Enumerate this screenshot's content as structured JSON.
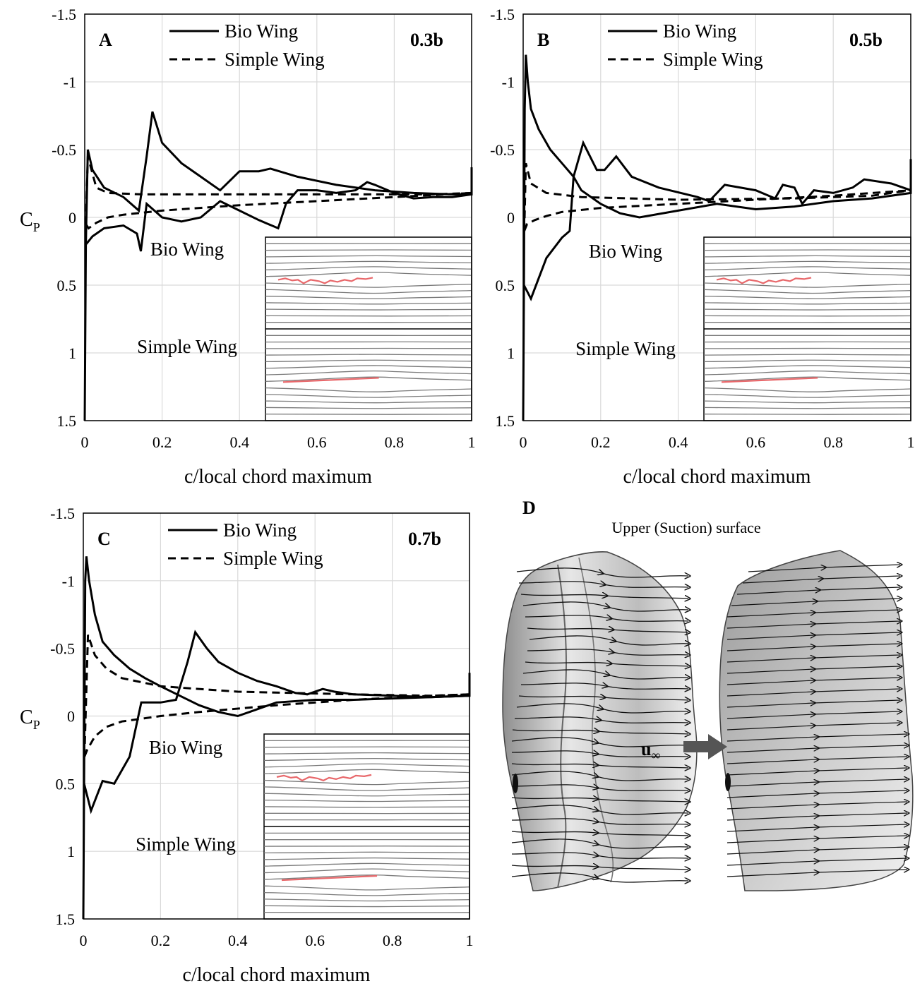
{
  "panels": [
    {
      "id": "A",
      "letter": "A",
      "position_label": "0.3b",
      "xlabel": "c/local chord maximum",
      "ylabel": "C",
      "ylabel_sub": "P",
      "legend": [
        "Bio Wing",
        "Simple Wing"
      ],
      "x_ticks": [
        "0",
        "0.2",
        "0.4",
        "0.6",
        "0.8",
        "1"
      ],
      "y_ticks": [
        "-1.5",
        "-1",
        "-0.5",
        "0",
        "0.5",
        "1",
        "1.5"
      ],
      "inset_labels": [
        "Bio Wing",
        "Simple Wing"
      ]
    },
    {
      "id": "B",
      "letter": "B",
      "position_label": "0.5b",
      "xlabel": "c/local chord maximum",
      "ylabel": "",
      "ylabel_sub": "",
      "legend": [
        "Bio Wing",
        "Simple Wing"
      ],
      "x_ticks": [
        "0",
        "0.2",
        "0.4",
        "0.6",
        "0.8",
        "1"
      ],
      "y_ticks": [
        "-1.5",
        "-1",
        "-0.5",
        "0",
        "0.5",
        "1",
        "1.5"
      ],
      "inset_labels": [
        "Bio Wing",
        "Simple Wing"
      ]
    },
    {
      "id": "C",
      "letter": "C",
      "position_label": "0.7b",
      "xlabel": "c/local chord maximum",
      "ylabel": "C",
      "ylabel_sub": "P",
      "legend": [
        "Bio Wing",
        "Simple Wing"
      ],
      "x_ticks": [
        "0",
        "0.2",
        "0.4",
        "0.6",
        "0.8",
        "1"
      ],
      "y_ticks": [
        "-1.5",
        "-1",
        "-0.5",
        "0",
        "0.5",
        "1",
        "1.5"
      ],
      "inset_labels": [
        "Bio Wing",
        "Simple Wing"
      ]
    }
  ],
  "panel_d": {
    "letter": "D",
    "title": "Upper (Suction) surface",
    "freestream_label": "u",
    "freestream_sub": "∞",
    "arrow_color": "#555555"
  },
  "chart_data": [
    {
      "type": "line",
      "xlim": [
        0,
        1
      ],
      "ylim": [
        1.5,
        -1.5
      ],
      "y_inverted": true,
      "grid": true,
      "legend_position": "top",
      "series": [
        {
          "name": "Bio Wing",
          "style": "solid",
          "upper": [
            [
              0,
              1.5
            ],
            [
              0.003,
              0.2
            ],
            [
              0.008,
              -0.5
            ],
            [
              0.02,
              -0.35
            ],
            [
              0.05,
              -0.22
            ],
            [
              0.1,
              -0.15
            ],
            [
              0.14,
              -0.05
            ],
            [
              0.16,
              -0.45
            ],
            [
              0.175,
              -0.78
            ],
            [
              0.2,
              -0.55
            ],
            [
              0.25,
              -0.4
            ],
            [
              0.3,
              -0.3
            ],
            [
              0.35,
              -0.2
            ],
            [
              0.4,
              -0.34
            ],
            [
              0.45,
              -0.34
            ],
            [
              0.48,
              -0.36
            ],
            [
              0.55,
              -0.3
            ],
            [
              0.65,
              -0.24
            ],
            [
              0.75,
              -0.2
            ],
            [
              0.85,
              -0.18
            ],
            [
              0.95,
              -0.17
            ],
            [
              1,
              -0.17
            ],
            [
              1,
              -0.37
            ]
          ],
          "lower": [
            [
              0.003,
              0.2
            ],
            [
              0.02,
              0.14
            ],
            [
              0.05,
              0.08
            ],
            [
              0.1,
              0.06
            ],
            [
              0.135,
              0.12
            ],
            [
              0.145,
              0.25
            ],
            [
              0.16,
              -0.1
            ],
            [
              0.2,
              0.0
            ],
            [
              0.25,
              0.03
            ],
            [
              0.3,
              0.0
            ],
            [
              0.35,
              -0.12
            ],
            [
              0.4,
              -0.05
            ],
            [
              0.45,
              0.02
            ],
            [
              0.5,
              0.08
            ],
            [
              0.52,
              -0.1
            ],
            [
              0.55,
              -0.2
            ],
            [
              0.6,
              -0.2
            ],
            [
              0.65,
              -0.18
            ],
            [
              0.7,
              -0.2
            ],
            [
              0.73,
              -0.26
            ],
            [
              0.75,
              -0.24
            ],
            [
              0.8,
              -0.18
            ],
            [
              0.85,
              -0.14
            ],
            [
              0.9,
              -0.15
            ],
            [
              0.95,
              -0.15
            ],
            [
              1,
              -0.17
            ]
          ]
        },
        {
          "name": "Simple Wing",
          "style": "dashed",
          "upper": [
            [
              0.003,
              0.05
            ],
            [
              0.008,
              -0.45
            ],
            [
              0.03,
              -0.22
            ],
            [
              0.06,
              -0.18
            ],
            [
              0.15,
              -0.17
            ],
            [
              0.4,
              -0.17
            ],
            [
              0.7,
              -0.17
            ],
            [
              0.9,
              -0.17
            ],
            [
              1,
              -0.18
            ]
          ],
          "lower": [
            [
              0.003,
              0.05
            ],
            [
              0.01,
              0.08
            ],
            [
              0.03,
              0.04
            ],
            [
              0.06,
              0.0
            ],
            [
              0.1,
              -0.02
            ],
            [
              0.2,
              -0.05
            ],
            [
              0.4,
              -0.09
            ],
            [
              0.6,
              -0.12
            ],
            [
              0.8,
              -0.15
            ],
            [
              1,
              -0.18
            ]
          ]
        }
      ]
    },
    {
      "type": "line",
      "xlim": [
        0,
        1
      ],
      "ylim": [
        1.5,
        -1.5
      ],
      "y_inverted": true,
      "grid": true,
      "legend_position": "top",
      "series": [
        {
          "name": "Bio Wing",
          "style": "solid",
          "upper": [
            [
              0,
              1.5
            ],
            [
              0.002,
              0.5
            ],
            [
              0.004,
              -0.8
            ],
            [
              0.007,
              -1.2
            ],
            [
              0.012,
              -1.0
            ],
            [
              0.02,
              -0.8
            ],
            [
              0.04,
              -0.65
            ],
            [
              0.07,
              -0.5
            ],
            [
              0.1,
              -0.4
            ],
            [
              0.13,
              -0.3
            ],
            [
              0.15,
              -0.2
            ],
            [
              0.2,
              -0.1
            ],
            [
              0.25,
              -0.03
            ],
            [
              0.3,
              -0.0
            ],
            [
              0.4,
              -0.05
            ],
            [
              0.5,
              -0.1
            ],
            [
              0.6,
              -0.06
            ],
            [
              0.7,
              -0.08
            ],
            [
              0.8,
              -0.12
            ],
            [
              0.9,
              -0.14
            ],
            [
              1,
              -0.18
            ],
            [
              1,
              -0.43
            ]
          ],
          "lower": [
            [
              0.002,
              0.5
            ],
            [
              0.02,
              0.6
            ],
            [
              0.06,
              0.3
            ],
            [
              0.1,
              0.15
            ],
            [
              0.12,
              0.1
            ],
            [
              0.13,
              -0.3
            ],
            [
              0.155,
              -0.55
            ],
            [
              0.19,
              -0.35
            ],
            [
              0.21,
              -0.35
            ],
            [
              0.24,
              -0.45
            ],
            [
              0.28,
              -0.3
            ],
            [
              0.35,
              -0.22
            ],
            [
              0.45,
              -0.15
            ],
            [
              0.48,
              -0.12
            ],
            [
              0.52,
              -0.24
            ],
            [
              0.6,
              -0.2
            ],
            [
              0.65,
              -0.14
            ],
            [
              0.67,
              -0.24
            ],
            [
              0.7,
              -0.22
            ],
            [
              0.72,
              -0.1
            ],
            [
              0.75,
              -0.2
            ],
            [
              0.8,
              -0.18
            ],
            [
              0.85,
              -0.22
            ],
            [
              0.88,
              -0.28
            ],
            [
              0.95,
              -0.25
            ],
            [
              1,
              -0.2
            ]
          ]
        },
        {
          "name": "Simple Wing",
          "style": "dashed",
          "upper": [
            [
              0.003,
              0.1
            ],
            [
              0.007,
              -0.4
            ],
            [
              0.02,
              -0.25
            ],
            [
              0.06,
              -0.18
            ],
            [
              0.15,
              -0.15
            ],
            [
              0.4,
              -0.13
            ],
            [
              0.7,
              -0.14
            ],
            [
              0.9,
              -0.16
            ],
            [
              1,
              -0.2
            ]
          ],
          "lower": [
            [
              0.003,
              0.1
            ],
            [
              0.01,
              0.05
            ],
            [
              0.03,
              0.02
            ],
            [
              0.06,
              -0.01
            ],
            [
              0.1,
              -0.04
            ],
            [
              0.2,
              -0.07
            ],
            [
              0.4,
              -0.1
            ],
            [
              0.6,
              -0.13
            ],
            [
              0.8,
              -0.16
            ],
            [
              1,
              -0.2
            ]
          ]
        }
      ]
    },
    {
      "type": "line",
      "xlim": [
        0,
        1
      ],
      "ylim": [
        1.5,
        -1.5
      ],
      "y_inverted": true,
      "grid": true,
      "legend_position": "top",
      "series": [
        {
          "name": "Bio Wing",
          "style": "solid",
          "upper": [
            [
              0,
              1.5
            ],
            [
              0.002,
              0.5
            ],
            [
              0.005,
              -1.0
            ],
            [
              0.008,
              -1.18
            ],
            [
              0.015,
              -1.0
            ],
            [
              0.03,
              -0.75
            ],
            [
              0.05,
              -0.55
            ],
            [
              0.08,
              -0.45
            ],
            [
              0.12,
              -0.35
            ],
            [
              0.16,
              -0.28
            ],
            [
              0.2,
              -0.22
            ],
            [
              0.25,
              -0.15
            ],
            [
              0.3,
              -0.08
            ],
            [
              0.35,
              -0.03
            ],
            [
              0.4,
              -0.0
            ],
            [
              0.43,
              -0.03
            ],
            [
              0.5,
              -0.1
            ],
            [
              0.6,
              -0.12
            ],
            [
              0.7,
              -0.12
            ],
            [
              0.8,
              -0.13
            ],
            [
              0.9,
              -0.14
            ],
            [
              1,
              -0.15
            ],
            [
              1,
              -0.32
            ]
          ],
          "lower": [
            [
              0.002,
              0.5
            ],
            [
              0.02,
              0.7
            ],
            [
              0.05,
              0.48
            ],
            [
              0.08,
              0.5
            ],
            [
              0.12,
              0.3
            ],
            [
              0.15,
              -0.1
            ],
            [
              0.2,
              -0.1
            ],
            [
              0.24,
              -0.12
            ],
            [
              0.27,
              -0.4
            ],
            [
              0.29,
              -0.62
            ],
            [
              0.32,
              -0.5
            ],
            [
              0.35,
              -0.4
            ],
            [
              0.4,
              -0.32
            ],
            [
              0.45,
              -0.26
            ],
            [
              0.5,
              -0.22
            ],
            [
              0.55,
              -0.17
            ],
            [
              0.58,
              -0.16
            ],
            [
              0.62,
              -0.2
            ],
            [
              0.65,
              -0.18
            ],
            [
              0.7,
              -0.16
            ],
            [
              0.8,
              -0.15
            ],
            [
              0.9,
              -0.14
            ],
            [
              1,
              -0.15
            ]
          ]
        },
        {
          "name": "Simple Wing",
          "style": "dashed",
          "upper": [
            [
              0.003,
              0.3
            ],
            [
              0.012,
              -0.6
            ],
            [
              0.03,
              -0.45
            ],
            [
              0.06,
              -0.35
            ],
            [
              0.1,
              -0.28
            ],
            [
              0.2,
              -0.22
            ],
            [
              0.4,
              -0.18
            ],
            [
              0.7,
              -0.16
            ],
            [
              0.9,
              -0.15
            ],
            [
              1,
              -0.16
            ]
          ],
          "lower": [
            [
              0.003,
              0.3
            ],
            [
              0.01,
              0.25
            ],
            [
              0.03,
              0.15
            ],
            [
              0.06,
              0.08
            ],
            [
              0.1,
              0.04
            ],
            [
              0.2,
              0.0
            ],
            [
              0.3,
              -0.03
            ],
            [
              0.5,
              -0.08
            ],
            [
              0.7,
              -0.12
            ],
            [
              0.9,
              -0.15
            ],
            [
              1,
              -0.16
            ]
          ]
        }
      ]
    }
  ]
}
